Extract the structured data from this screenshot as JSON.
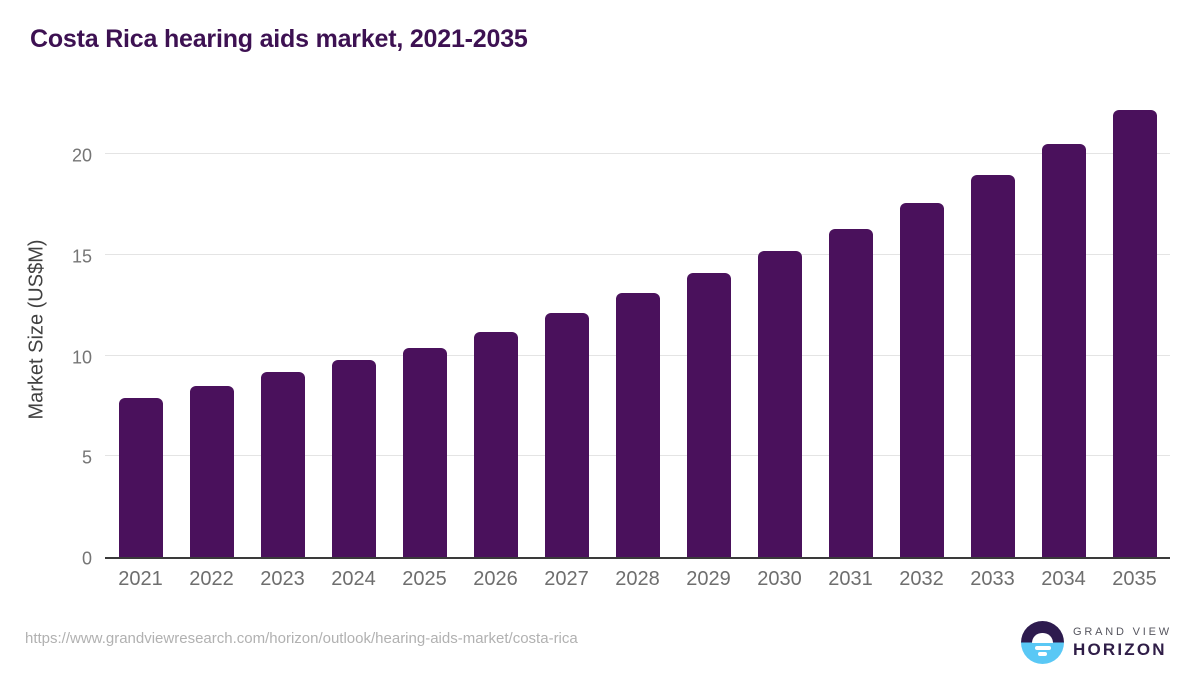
{
  "header": {
    "title": "Costa Rica hearing aids market, 2021-2035"
  },
  "chart_data": {
    "type": "bar",
    "title": "Costa Rica hearing aids market, 2021-2035",
    "categories": [
      "2021",
      "2022",
      "2023",
      "2024",
      "2025",
      "2026",
      "2027",
      "2028",
      "2029",
      "2030",
      "2031",
      "2032",
      "2033",
      "2034",
      "2035"
    ],
    "values": [
      7.9,
      8.5,
      9.2,
      9.8,
      10.4,
      11.2,
      12.1,
      13.1,
      14.1,
      15.2,
      16.3,
      17.6,
      19.0,
      20.5,
      22.2
    ],
    "xlabel": "",
    "ylabel": "Market Size (US$M)",
    "ylim": [
      0,
      22.8
    ],
    "yticks": [
      0,
      5,
      10,
      15,
      20
    ],
    "grid": true,
    "legend": "none",
    "bar_color": "#4a115c"
  },
  "footer": {
    "source_url": "https://www.grandviewresearch.com/horizon/outlook/hearing-aids-market/costa-rica",
    "logo": {
      "line1": "GRAND VIEW",
      "line2": "HORIZON"
    }
  },
  "colors": {
    "title": "#3d1152",
    "bar": "#4a115c",
    "axis_line": "#3a3a3a",
    "gridline": "#e4e4e4",
    "y_tick_label": "#757575",
    "x_tick_label": "#6e6e6e",
    "axis_title": "#414141",
    "source_url": "#b1b1b1",
    "logo_purple": "#2d1b4e",
    "logo_blue": "#5ac8f5"
  }
}
